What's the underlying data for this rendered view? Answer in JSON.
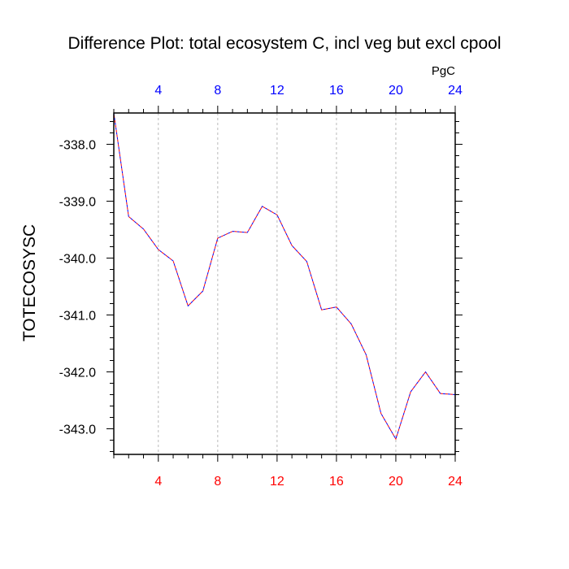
{
  "chart_data": {
    "type": "line",
    "title": "Difference Plot: total ecosystem C, incl veg but excl cpool",
    "units_label": "PgC",
    "xlabel": "",
    "ylabel": "TOTECOSYSC",
    "xlim": [
      1,
      24
    ],
    "ylim": [
      -343.45,
      -337.45
    ],
    "x_ticks": [
      4,
      8,
      12,
      16,
      20,
      24
    ],
    "y_ticks": [
      -338.0,
      -339.0,
      -340.0,
      -341.0,
      -342.0,
      -343.0
    ],
    "y_tick_labels": [
      "-338.0",
      "-339.0",
      "-340.0",
      "-341.0",
      "-342.0",
      "-343.0"
    ],
    "bottom_tick_color": "#ff0000",
    "top_tick_color": "#0000ff",
    "grid_color": "#bbbbbb",
    "series": [
      {
        "line_colors": [
          "#0000ff",
          "#ff0000"
        ],
        "x": [
          1,
          2,
          3,
          4,
          5,
          6,
          7,
          8,
          9,
          10,
          11,
          12,
          13,
          14,
          15,
          16,
          17,
          18,
          19,
          20,
          21,
          22,
          23,
          24
        ],
        "values": [
          -337.45,
          -339.27,
          -339.49,
          -339.85,
          -340.05,
          -340.84,
          -340.58,
          -339.65,
          -339.53,
          -339.55,
          -339.09,
          -339.24,
          -339.78,
          -340.06,
          -340.91,
          -340.86,
          -341.16,
          -341.7,
          -342.73,
          -343.18,
          -342.35,
          -342.0,
          -342.38,
          -342.4
        ]
      }
    ]
  }
}
